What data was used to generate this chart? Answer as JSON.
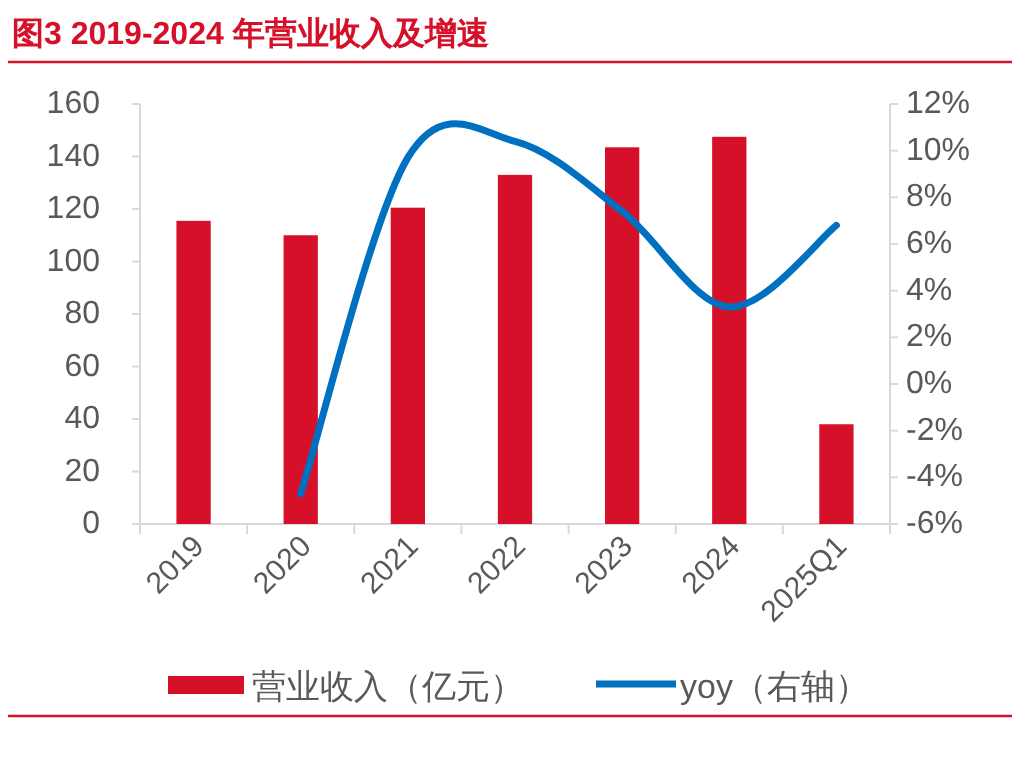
{
  "chart_data": {
    "type": "bar",
    "title": "图3 2019-2024 年营业收入及增速",
    "categories": [
      "2019",
      "2020",
      "2021",
      "2022",
      "2023",
      "2024",
      "2025Q1"
    ],
    "series": [
      {
        "name": "营业收入（亿元）",
        "color": "#d7102a",
        "values": [
          115.5,
          110,
          120.5,
          133,
          143.5,
          147.5,
          38
        ]
      },
      {
        "name": "yoy（右轴）",
        "type": "line",
        "axis": "y2",
        "color": "#0070c0",
        "values": [
          null,
          -4.7,
          9.7,
          10.4,
          7.4,
          3.3,
          6.8
        ]
      }
    ],
    "ylim": [
      0,
      160
    ],
    "yticks": [
      0,
      20,
      40,
      60,
      80,
      100,
      120,
      140,
      160
    ],
    "y2lim": [
      -6,
      12
    ],
    "y2ticks": [
      {
        "value": -6,
        "label": "-6%"
      },
      {
        "value": -4,
        "label": "-4%"
      },
      {
        "value": -2,
        "label": "-2%"
      },
      {
        "value": 0,
        "label": "0%"
      },
      {
        "value": 2,
        "label": "2%"
      },
      {
        "value": 4,
        "label": "4%"
      },
      {
        "value": 6,
        "label": "6%"
      },
      {
        "value": 8,
        "label": "8%"
      },
      {
        "value": 10,
        "label": "10%"
      },
      {
        "value": 12,
        "label": "12%"
      }
    ],
    "legend": "bottom",
    "grid": false
  }
}
